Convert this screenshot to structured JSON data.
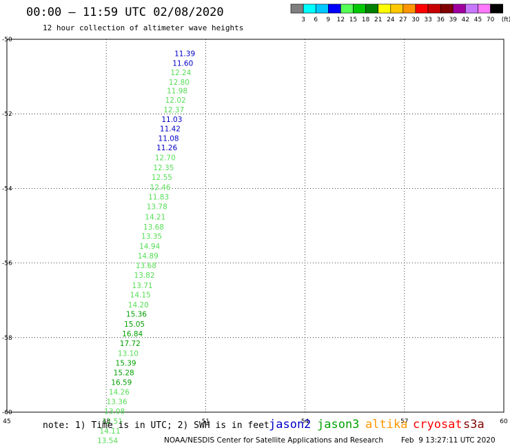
{
  "header": {
    "title": "00:00 – 11:59 UTC 02/08/2020",
    "subtitle": "12 hour collection of altimeter wave heights"
  },
  "colorbar": {
    "labels": [
      "3",
      "6",
      "9",
      "12",
      "15",
      "18",
      "21",
      "24",
      "27",
      "30",
      "33",
      "36",
      "39",
      "42",
      "45",
      "70"
    ],
    "unit": "(ft)",
    "colors": [
      "#7f7f7f",
      "#00ffff",
      "#00c8ff",
      "#0000ff",
      "#55ff55",
      "#00c800",
      "#008000",
      "#ffff00",
      "#ffc800",
      "#ff9600",
      "#ff0000",
      "#c80000",
      "#800000",
      "#a000a0",
      "#c878ff",
      "#ff78ff",
      "#000000"
    ]
  },
  "footer": {
    "note": "note: 1) Time is in UTC; 2) SWH is in feet",
    "credit": "NOAA/NESDIS Center for Satellite Applications and Research",
    "timestamp": "Feb  9 13:27:11 UTC 2020"
  },
  "satellites": [
    {
      "name": "jason2",
      "color": "#0000c8"
    },
    {
      "name": "jason3",
      "color": "#00a000"
    },
    {
      "name": "altika",
      "color": "#ff9600"
    },
    {
      "name": "cryosat",
      "color": "#ff0000"
    },
    {
      "name": "s3a",
      "color": "#800000"
    }
  ],
  "chart_data": {
    "type": "scatter",
    "xlim": [
      45,
      60
    ],
    "ylim": [
      -60,
      -50
    ],
    "x_ticks": [
      "45",
      "48",
      "51",
      "54",
      "57",
      "60"
    ],
    "y_ticks": [
      "-50",
      "-52",
      "-54",
      "-56",
      "-58",
      "-60"
    ],
    "grid": true,
    "wave_heights": [
      {
        "x": 50.37,
        "y": -50.45,
        "value": "11.39",
        "color": "#0000c8"
      },
      {
        "x": 50.31,
        "y": -50.71,
        "value": "11.60",
        "color": "#0000c8"
      },
      {
        "x": 50.25,
        "y": -50.96,
        "value": "12.24",
        "color": "#55dd55"
      },
      {
        "x": 50.2,
        "y": -51.22,
        "value": "12.80",
        "color": "#55dd55"
      },
      {
        "x": 50.14,
        "y": -51.45,
        "value": "11.98",
        "color": "#55dd55"
      },
      {
        "x": 50.09,
        "y": -51.7,
        "value": "12.02",
        "color": "#55dd55"
      },
      {
        "x": 50.04,
        "y": -51.96,
        "value": "12.37",
        "color": "#55dd55"
      },
      {
        "x": 49.98,
        "y": -52.22,
        "value": "11.03",
        "color": "#0000c8"
      },
      {
        "x": 49.93,
        "y": -52.47,
        "value": "11.42",
        "color": "#0000c8"
      },
      {
        "x": 49.88,
        "y": -52.73,
        "value": "11.08",
        "color": "#0000c8"
      },
      {
        "x": 49.83,
        "y": -52.98,
        "value": "11.26",
        "color": "#0000c8"
      },
      {
        "x": 49.78,
        "y": -53.24,
        "value": "12.70",
        "color": "#55dd55"
      },
      {
        "x": 49.73,
        "y": -53.51,
        "value": "12.35",
        "color": "#55dd55"
      },
      {
        "x": 49.68,
        "y": -53.77,
        "value": "12.55",
        "color": "#55dd55"
      },
      {
        "x": 49.63,
        "y": -54.04,
        "value": "12.46",
        "color": "#55dd55"
      },
      {
        "x": 49.58,
        "y": -54.3,
        "value": "11.83",
        "color": "#55dd55"
      },
      {
        "x": 49.53,
        "y": -54.56,
        "value": "13.78",
        "color": "#55dd55"
      },
      {
        "x": 49.48,
        "y": -54.83,
        "value": "14.21",
        "color": "#55dd55"
      },
      {
        "x": 49.43,
        "y": -55.1,
        "value": "13.68",
        "color": "#55dd55"
      },
      {
        "x": 49.37,
        "y": -55.35,
        "value": "13.35",
        "color": "#55dd55"
      },
      {
        "x": 49.31,
        "y": -55.62,
        "value": "14.94",
        "color": "#55dd55"
      },
      {
        "x": 49.26,
        "y": -55.88,
        "value": "14.89",
        "color": "#55dd55"
      },
      {
        "x": 49.2,
        "y": -56.14,
        "value": "13.68",
        "color": "#55dd55"
      },
      {
        "x": 49.15,
        "y": -56.4,
        "value": "13.82",
        "color": "#55dd55"
      },
      {
        "x": 49.09,
        "y": -56.67,
        "value": "13.71",
        "color": "#55dd55"
      },
      {
        "x": 49.03,
        "y": -56.92,
        "value": "14.15",
        "color": "#55dd55"
      },
      {
        "x": 48.97,
        "y": -57.19,
        "value": "14.20",
        "color": "#55dd55"
      },
      {
        "x": 48.91,
        "y": -57.44,
        "value": "15.36",
        "color": "#00a000"
      },
      {
        "x": 48.85,
        "y": -57.71,
        "value": "15.05",
        "color": "#00a000"
      },
      {
        "x": 48.79,
        "y": -57.97,
        "value": "16.84",
        "color": "#00a000"
      },
      {
        "x": 48.72,
        "y": -58.23,
        "value": "17.72",
        "color": "#00a000"
      },
      {
        "x": 48.66,
        "y": -58.49,
        "value": "13.10",
        "color": "#55dd55"
      },
      {
        "x": 48.59,
        "y": -58.75,
        "value": "15.39",
        "color": "#00a000"
      },
      {
        "x": 48.53,
        "y": -59.01,
        "value": "15.28",
        "color": "#00a000"
      },
      {
        "x": 48.46,
        "y": -59.27,
        "value": "16.59",
        "color": "#00a000"
      },
      {
        "x": 48.39,
        "y": -59.53,
        "value": "14.26",
        "color": "#55dd55"
      },
      {
        "x": 48.32,
        "y": -59.79,
        "value": "13.36",
        "color": "#55dd55"
      },
      {
        "x": 48.25,
        "y": -60.05,
        "value": "13.08",
        "color": "#55dd55"
      },
      {
        "x": 48.18,
        "y": -60.31,
        "value": "12.51",
        "color": "#55dd55"
      },
      {
        "x": 48.11,
        "y": -60.57,
        "value": "14.11",
        "color": "#55dd55"
      },
      {
        "x": 48.04,
        "y": -60.83,
        "value": "13.54",
        "color": "#55dd55"
      }
    ],
    "labels": []
  }
}
